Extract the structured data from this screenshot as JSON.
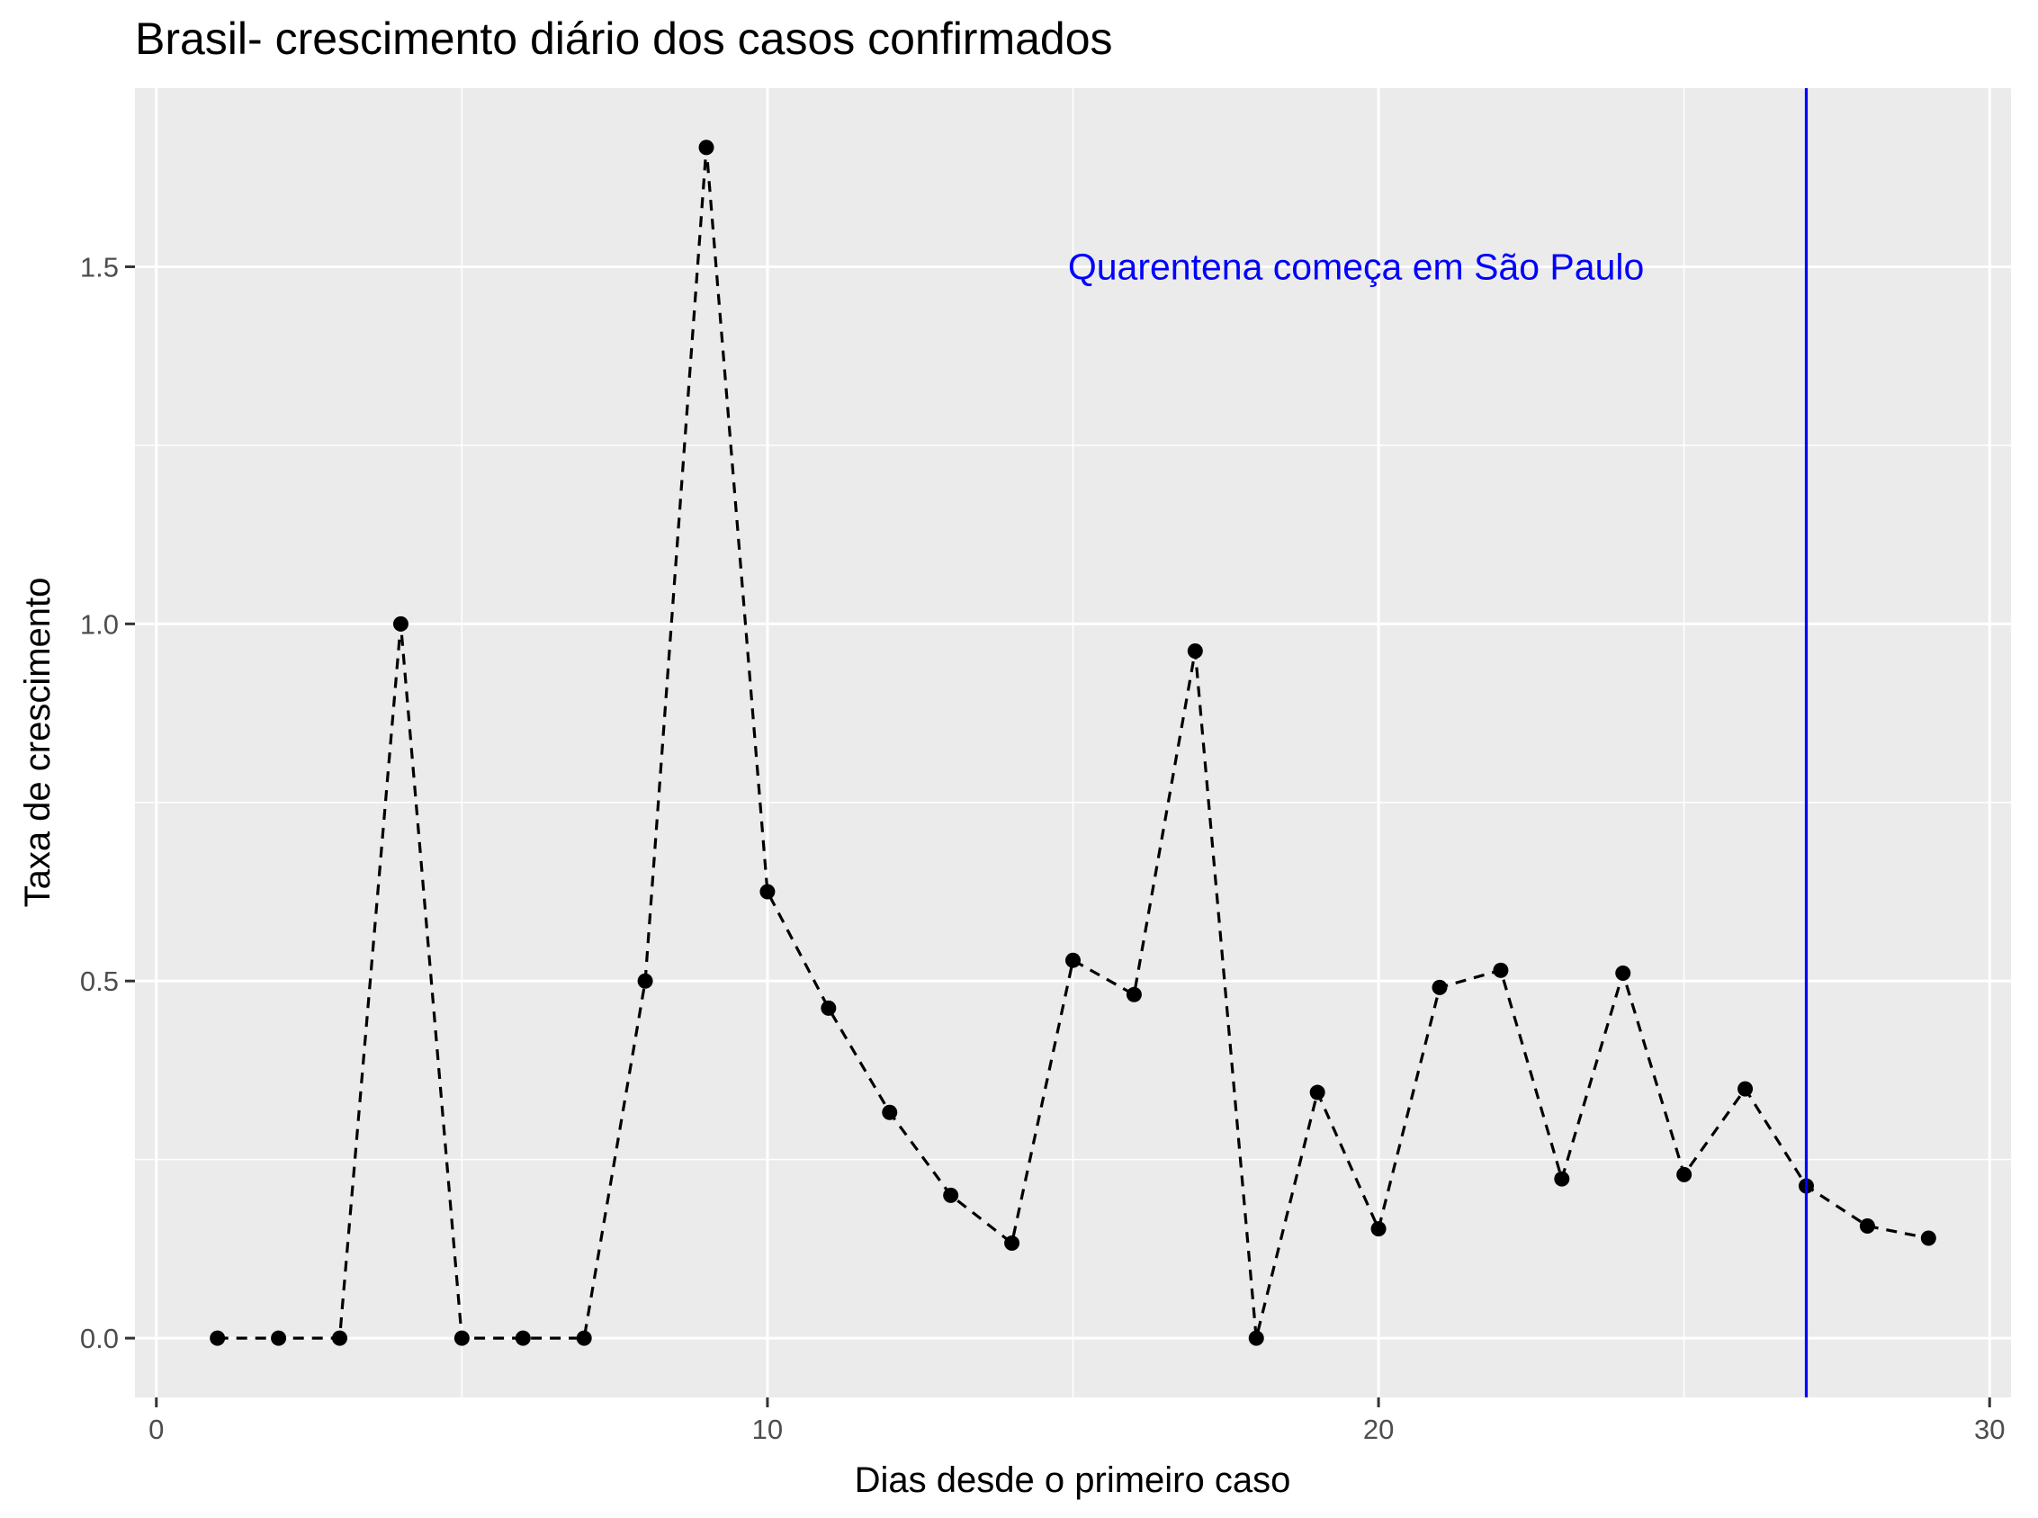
{
  "chart_data": {
    "type": "line",
    "title": "Brasil- crescimento diário dos casos confirmados",
    "xlabel": "Dias desde o primeiro caso",
    "ylabel": "Taxa de crescimento",
    "xlim": [
      -0.35,
      30.35
    ],
    "ylim": [
      -0.083,
      1.75
    ],
    "x_ticks": [
      0,
      10,
      20,
      30
    ],
    "x_tick_labels": [
      "0",
      "10",
      "20",
      "30"
    ],
    "y_ticks": [
      0.0,
      0.5,
      1.0,
      1.5
    ],
    "y_tick_labels": [
      "0.0",
      "0.5",
      "1.0",
      "1.5"
    ],
    "grid": true,
    "panel_background": "#ebebeb",
    "series": [
      {
        "line_style": "dashed",
        "color": "#000000",
        "x": [
          1,
          2,
          3,
          4,
          5,
          6,
          7,
          8,
          9,
          10,
          11,
          12,
          13,
          14,
          15,
          16,
          17,
          18,
          19,
          20,
          21,
          22,
          23,
          24,
          25,
          26,
          27,
          28,
          29
        ],
        "y": [
          0.0,
          0.0,
          0.0,
          1.0,
          0.0,
          0.0,
          0.0,
          0.5,
          1.667,
          0.625,
          0.462,
          0.316,
          0.2,
          0.133,
          0.529,
          0.481,
          0.962,
          0.0,
          0.344,
          0.153,
          0.491,
          0.515,
          0.223,
          0.511,
          0.229,
          0.349,
          0.213,
          0.157,
          0.14
        ]
      }
    ],
    "vline": {
      "x": 27,
      "color": "#0000ff"
    },
    "annotation": {
      "text": "Quarentena começa em São Paulo",
      "x": 20,
      "y": 1.5,
      "color": "#0000ff"
    }
  }
}
